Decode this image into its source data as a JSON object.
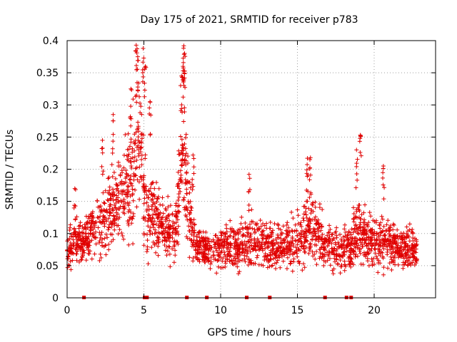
{
  "chart_data": {
    "type": "scatter",
    "title": "Day 175 of 2021, SRMTID for receiver p783",
    "xlabel": "GPS time / hours",
    "ylabel": "SRMTID / TECUs",
    "xlim": [
      0,
      24
    ],
    "ylim": [
      0,
      0.4
    ],
    "xticks": [
      0,
      5,
      10,
      15,
      20
    ],
    "xtick_labels": [
      "0",
      "5",
      "10",
      "15",
      "20"
    ],
    "yticks": [
      0,
      0.05,
      0.1,
      0.15,
      0.2,
      0.25,
      0.3,
      0.35,
      0.4
    ],
    "ytick_labels": [
      "0",
      "0.05",
      "0.1",
      "0.15",
      "0.2",
      "0.25",
      "0.3",
      "0.35",
      "0.4"
    ],
    "grid": true,
    "marker": "+",
    "color": "#e00000",
    "profile": {
      "x": [
        0,
        0.5,
        1,
        1.5,
        2,
        2.5,
        3,
        3.5,
        4,
        4.3,
        4.6,
        4.8,
        5,
        5.3,
        5.6,
        6,
        6.5,
        7,
        7.3,
        7.55,
        7.8,
        8.2,
        8.5,
        9,
        9.5,
        10,
        10.5,
        11,
        11.5,
        12,
        12.5,
        13,
        13.5,
        14,
        14.5,
        15,
        15.5,
        16,
        16.5,
        17,
        17.5,
        18,
        18.5,
        19,
        19.5,
        20,
        20.5,
        21,
        21.5,
        22,
        22.5,
        22.8
      ],
      "median": [
        0.075,
        0.085,
        0.085,
        0.1,
        0.115,
        0.12,
        0.14,
        0.15,
        0.17,
        0.2,
        0.24,
        0.23,
        0.16,
        0.14,
        0.13,
        0.12,
        0.1,
        0.1,
        0.17,
        0.25,
        0.16,
        0.1,
        0.08,
        0.08,
        0.075,
        0.075,
        0.08,
        0.075,
        0.08,
        0.09,
        0.085,
        0.085,
        0.08,
        0.08,
        0.085,
        0.09,
        0.1,
        0.11,
        0.095,
        0.08,
        0.075,
        0.075,
        0.08,
        0.11,
        0.09,
        0.085,
        0.09,
        0.085,
        0.08,
        0.08,
        0.075,
        0.075
      ],
      "spread": [
        0.025,
        0.03,
        0.03,
        0.035,
        0.045,
        0.05,
        0.06,
        0.06,
        0.07,
        0.08,
        0.09,
        0.09,
        0.07,
        0.06,
        0.05,
        0.04,
        0.035,
        0.04,
        0.07,
        0.09,
        0.06,
        0.035,
        0.025,
        0.025,
        0.03,
        0.03,
        0.03,
        0.03,
        0.03,
        0.035,
        0.03,
        0.03,
        0.03,
        0.03,
        0.03,
        0.035,
        0.04,
        0.05,
        0.03,
        0.03,
        0.03,
        0.03,
        0.03,
        0.045,
        0.035,
        0.035,
        0.04,
        0.035,
        0.03,
        0.03,
        0.03,
        0.03
      ]
    },
    "peaks": [
      {
        "x": 0.5,
        "y": 0.17
      },
      {
        "x": 2.3,
        "y": 0.245
      },
      {
        "x": 3.0,
        "y": 0.285
      },
      {
        "x": 4.15,
        "y": 0.325
      },
      {
        "x": 4.5,
        "y": 0.393
      },
      {
        "x": 4.6,
        "y": 0.375
      },
      {
        "x": 4.95,
        "y": 0.388
      },
      {
        "x": 5.1,
        "y": 0.36
      },
      {
        "x": 5.4,
        "y": 0.305
      },
      {
        "x": 7.45,
        "y": 0.345
      },
      {
        "x": 7.6,
        "y": 0.392
      },
      {
        "x": 7.65,
        "y": 0.38
      },
      {
        "x": 7.55,
        "y": 0.36
      },
      {
        "x": 8.2,
        "y": 0.222
      },
      {
        "x": 11.85,
        "y": 0.192
      },
      {
        "x": 15.65,
        "y": 0.217
      },
      {
        "x": 15.85,
        "y": 0.218
      },
      {
        "x": 18.85,
        "y": 0.23
      },
      {
        "x": 19.1,
        "y": 0.253
      },
      {
        "x": 20.6,
        "y": 0.205
      }
    ],
    "gaps_x": [
      1.1,
      5.05,
      5.2,
      7.8,
      9.1,
      11.7,
      13.2,
      16.8,
      18.2,
      18.5
    ],
    "n_points": 2400
  }
}
